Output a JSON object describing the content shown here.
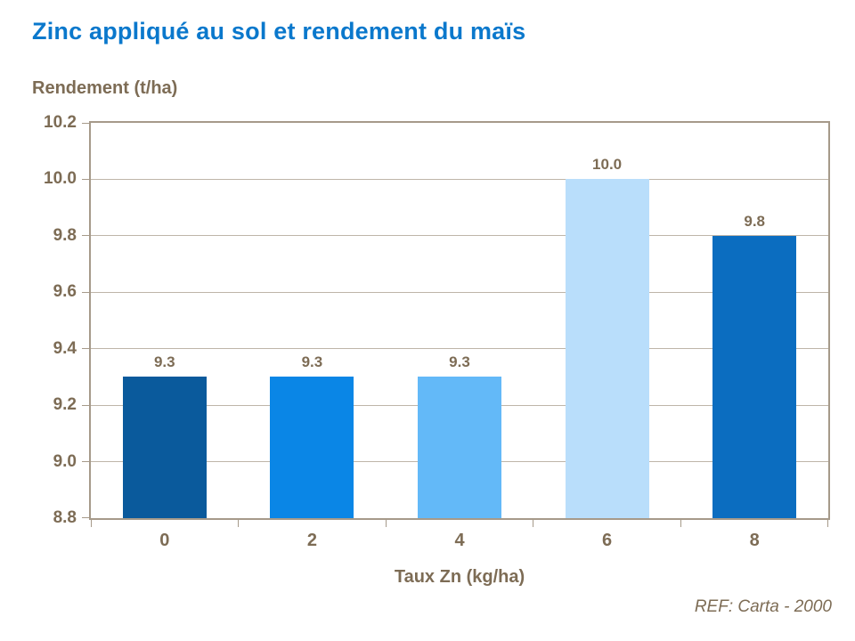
{
  "footer": {
    "ref_label": "REF: Carta - 2000"
  },
  "chart_data": {
    "type": "bar",
    "title": "Zinc appliqué au sol et rendement du maïs",
    "categories": [
      "0",
      "2",
      "4",
      "6",
      "8"
    ],
    "values": [
      9.3,
      9.3,
      9.3,
      10.0,
      9.8
    ],
    "value_labels": [
      "9.3",
      "9.3",
      "9.3",
      "10.0",
      "9.8"
    ],
    "bar_colors": [
      "#0a5a9c",
      "#0a86e6",
      "#63b9f8",
      "#b9defb",
      "#0b6dc0"
    ],
    "xlabel": "Taux Zn (kg/ha)",
    "ylabel": "Rendement (t/ha)",
    "ylim": [
      8.8,
      10.2
    ],
    "ytick_step": 0.2,
    "ytick_labels": [
      "8.8",
      "9.0",
      "9.2",
      "9.4",
      "9.6",
      "9.8",
      "10.0",
      "10.2"
    ],
    "grid": true,
    "legend": "none",
    "colors": {
      "title_text": "#0a78cc",
      "axis_text": "#7d6c55",
      "grid_line": "#beb5a9",
      "axis_border": "#a69a8a",
      "background": "#ffffff"
    }
  }
}
